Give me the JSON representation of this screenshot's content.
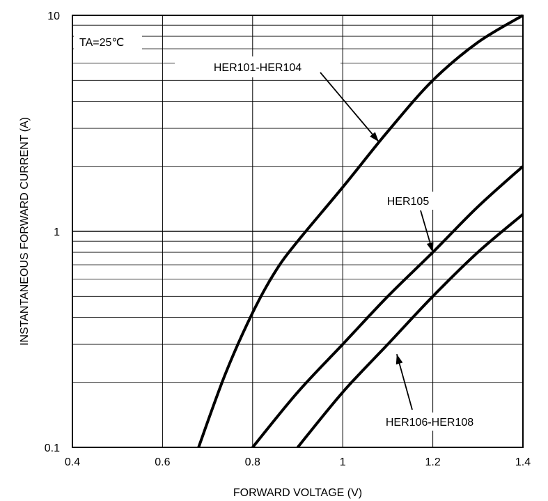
{
  "chart_data": {
    "type": "line",
    "title": "",
    "xlabel": "FORWARD VOLTAGE (V)",
    "ylabel": "INSTANTANEOUS FORWARD CURRENT (A)",
    "xlim": [
      0.4,
      1.4
    ],
    "ylim": [
      0.1,
      10
    ],
    "y_scale": "log",
    "grid": true,
    "x_ticks": [
      "0.4",
      "0.6",
      "0.8",
      "1",
      "1.2",
      "1.4"
    ],
    "y_ticks": [
      "0.1",
      "1",
      "10"
    ],
    "condition_label": "TA=25℃",
    "series": [
      {
        "name": "HER101-HER104",
        "x": [
          0.68,
          0.74,
          0.8,
          0.85,
          0.9,
          1.0,
          1.1,
          1.2,
          1.3,
          1.4
        ],
        "y": [
          0.1,
          0.22,
          0.42,
          0.65,
          0.9,
          1.6,
          2.9,
          5.0,
          7.5,
          10.0
        ]
      },
      {
        "name": "HER105",
        "x": [
          0.8,
          0.9,
          1.0,
          1.1,
          1.2,
          1.3,
          1.4
        ],
        "y": [
          0.1,
          0.18,
          0.3,
          0.5,
          0.8,
          1.3,
          2.0
        ]
      },
      {
        "name": "HER106-HER108",
        "x": [
          0.9,
          1.0,
          1.1,
          1.2,
          1.3,
          1.4
        ],
        "y": [
          0.1,
          0.18,
          0.3,
          0.5,
          0.8,
          1.2
        ]
      }
    ],
    "annotations": [
      {
        "text": "HER101-HER104",
        "series": 0,
        "point_to": [
          1.08,
          2.6
        ]
      },
      {
        "text": "HER105",
        "series": 1,
        "point_to": [
          1.2,
          0.8
        ]
      },
      {
        "text": "HER106-HER108",
        "series": 2,
        "point_to": [
          1.12,
          0.27
        ]
      }
    ]
  }
}
